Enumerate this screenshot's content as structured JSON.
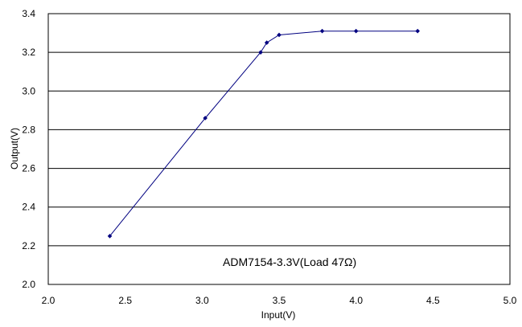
{
  "chart_data": {
    "type": "line",
    "xlabel": "Input(V)",
    "ylabel": "Output(V)",
    "xlim": [
      2.0,
      5.0
    ],
    "ylim": [
      2.0,
      3.4
    ],
    "xticks": [
      "2.0",
      "2.5",
      "3.0",
      "3.5",
      "4.0",
      "4.5",
      "5.0"
    ],
    "yticks": [
      "2.0",
      "2.2",
      "2.4",
      "2.6",
      "2.8",
      "3.0",
      "3.2",
      "3.4"
    ],
    "grid": "horizontal",
    "annotation": "ADM7154-3.3V(Load 47Ω)",
    "series": [
      {
        "color": "#000080",
        "x": [
          2.4,
          3.02,
          3.38,
          3.42,
          3.5,
          3.78,
          4.0,
          4.4
        ],
        "y": [
          2.25,
          2.86,
          3.2,
          3.25,
          3.29,
          3.31,
          3.31,
          3.31
        ]
      }
    ]
  }
}
